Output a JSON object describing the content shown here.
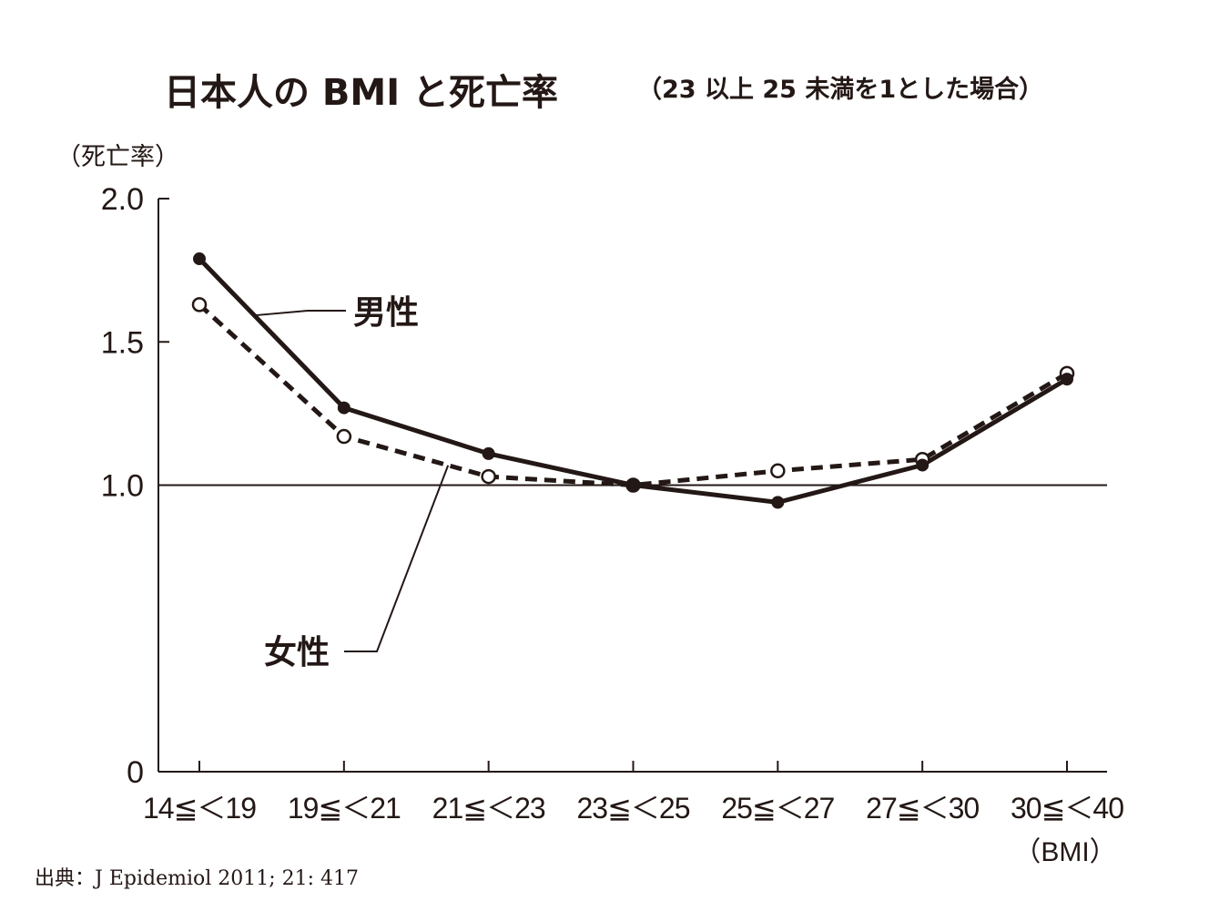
{
  "chart_data": {
    "type": "line",
    "title": "日本人の BMI と死亡率",
    "subtitle": "（23 以上 25 未満を1とした場合）",
    "ylabel": "（死亡率）",
    "xunit": "（BMI）",
    "categories": [
      "14≦＜19",
      "19≦＜21",
      "21≦＜23",
      "23≦＜25",
      "25≦＜27",
      "27≦＜30",
      "30≦＜40"
    ],
    "ylim": [
      0,
      2.0
    ],
    "yticks": [
      {
        "value": 0,
        "label": "0"
      },
      {
        "value": 1.0,
        "label": "1.0"
      },
      {
        "value": 1.5,
        "label": "1.5"
      },
      {
        "value": 2.0,
        "label": "2.0"
      }
    ],
    "reference_line": 1.0,
    "series": [
      {
        "name": "男性",
        "style": "solid",
        "marker": "filled",
        "values": [
          1.79,
          1.27,
          1.11,
          1.0,
          0.94,
          1.07,
          1.37
        ]
      },
      {
        "name": "女性",
        "style": "dashed",
        "marker": "open",
        "values": [
          1.63,
          1.17,
          1.03,
          1.0,
          1.05,
          1.09,
          1.39
        ]
      }
    ],
    "grid": false,
    "legend": "inline-callouts",
    "source": "出典：J Epidemiol 2011; 21: 417",
    "colors": {
      "ink": "#231815",
      "background": "#ffffff"
    }
  }
}
